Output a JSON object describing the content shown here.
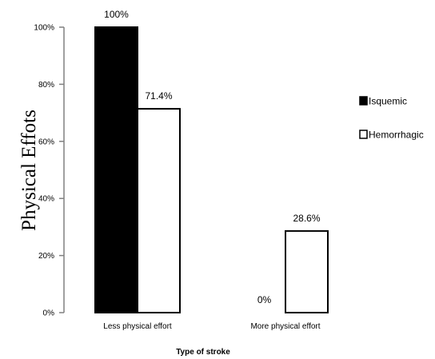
{
  "chart_data": {
    "type": "bar",
    "title": "",
    "xlabel": "Type of stroke",
    "ylabel": "Physical Effots",
    "categories": [
      "Less physical effort",
      "More physical effort"
    ],
    "series": [
      {
        "name": "Isquemic",
        "values": [
          100,
          0
        ],
        "labels": [
          "100%",
          "0%"
        ],
        "color": "#000000"
      },
      {
        "name": "Hemorrhagic",
        "values": [
          71.4,
          28.6
        ],
        "labels": [
          "71.4%",
          "28.6%"
        ],
        "color": "#ffffff"
      }
    ],
    "ylim": [
      0,
      100
    ],
    "yticks": [
      0,
      20,
      40,
      60,
      80,
      100
    ],
    "ytick_labels": [
      "0%",
      "20%",
      "40%",
      "60%",
      "80%",
      "100%"
    ],
    "grid": false,
    "legend": "right"
  }
}
